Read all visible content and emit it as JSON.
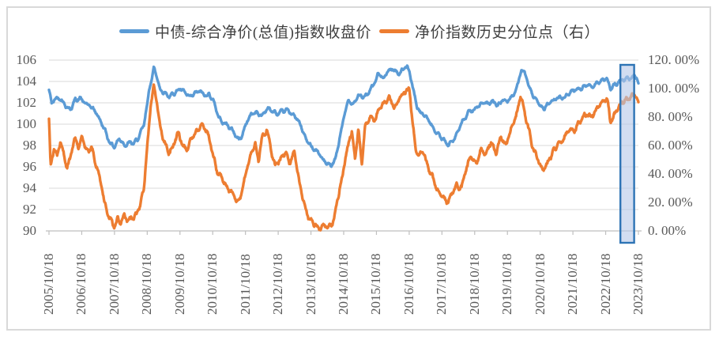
{
  "legend": {
    "items": [
      {
        "label": "中债-综合净价(总值)指数收盘价",
        "color": "#5B9BD5"
      },
      {
        "label": "净价指数历史分位点（右）",
        "color": "#ED7D31"
      }
    ]
  },
  "chart_data": {
    "type": "line",
    "title": "",
    "grid": "horizontal",
    "legend_position": "top",
    "left_axis": {
      "min": 90,
      "max": 106,
      "tick_step": 2,
      "tick_labels": [
        "106",
        "104",
        "102",
        "100",
        "98",
        "96",
        "94",
        "92",
        "90"
      ]
    },
    "right_axis": {
      "min": 0,
      "max": 120,
      "tick_step": 20,
      "unit": "%",
      "tick_labels": [
        "120. 00%",
        "100. 00%",
        "80. 00%",
        "60. 00%",
        "40. 00%",
        "20. 00%",
        "0. 00%"
      ]
    },
    "x_axis": {
      "start": 2005.8,
      "end": 2023.8,
      "tick_labels": [
        "2005/10/18",
        "2006/10/18",
        "2007/10/18",
        "2008/10/18",
        "2009/10/18",
        "2010/10/18",
        "2011/10/18",
        "2012/10/18",
        "2013/10/18",
        "2014/10/18",
        "2015/10/18",
        "2016/10/18",
        "2017/10/18",
        "2018/10/18",
        "2019/10/18",
        "2020/10/18",
        "2021/10/18",
        "2022/10/18",
        "2023/10/18"
      ]
    },
    "highlight_band": {
      "from_x": 2023.25,
      "to_x": 2023.67,
      "fill": "#B4C7E7",
      "fill_opacity": 0.6,
      "border": "#2E74B5"
    },
    "series": [
      {
        "name": "中债-综合净价(总值)指数收盘价",
        "axis": "left",
        "color": "#5B9BD5",
        "noise_amp": 0.22,
        "keypoints": [
          [
            2005.8,
            103.2
          ],
          [
            2005.88,
            101.9
          ],
          [
            2006.0,
            102.3
          ],
          [
            2006.15,
            102.5
          ],
          [
            2006.3,
            101.9
          ],
          [
            2006.45,
            101.4
          ],
          [
            2006.6,
            102.2
          ],
          [
            2006.75,
            102.4
          ],
          [
            2006.9,
            102.0
          ],
          [
            2007.05,
            101.7
          ],
          [
            2007.2,
            101.2
          ],
          [
            2007.35,
            100.4
          ],
          [
            2007.5,
            99.5
          ],
          [
            2007.65,
            98.4
          ],
          [
            2007.8,
            97.9
          ],
          [
            2007.95,
            98.6
          ],
          [
            2008.1,
            98.1
          ],
          [
            2008.25,
            98.3
          ],
          [
            2008.4,
            98.2
          ],
          [
            2008.55,
            98.7
          ],
          [
            2008.7,
            99.8
          ],
          [
            2008.85,
            103.0
          ],
          [
            2009.0,
            105.4
          ],
          [
            2009.08,
            104.6
          ],
          [
            2009.2,
            103.2
          ],
          [
            2009.35,
            102.9
          ],
          [
            2009.5,
            102.6
          ],
          [
            2009.65,
            103.1
          ],
          [
            2009.8,
            103.3
          ],
          [
            2009.95,
            102.8
          ],
          [
            2010.1,
            102.4
          ],
          [
            2010.25,
            102.9
          ],
          [
            2010.4,
            103.1
          ],
          [
            2010.55,
            102.6
          ],
          [
            2010.7,
            102.8
          ],
          [
            2010.85,
            102.0
          ],
          [
            2011.0,
            100.6
          ],
          [
            2011.15,
            100.1
          ],
          [
            2011.3,
            99.7
          ],
          [
            2011.45,
            99.2
          ],
          [
            2011.6,
            98.6
          ],
          [
            2011.7,
            99.0
          ],
          [
            2011.85,
            100.3
          ],
          [
            2012.0,
            100.9
          ],
          [
            2012.15,
            101.2
          ],
          [
            2012.3,
            100.8
          ],
          [
            2012.45,
            101.5
          ],
          [
            2012.6,
            101.2
          ],
          [
            2012.75,
            100.9
          ],
          [
            2012.9,
            101.1
          ],
          [
            2013.05,
            101.3
          ],
          [
            2013.2,
            101.0
          ],
          [
            2013.35,
            100.5
          ],
          [
            2013.5,
            99.8
          ],
          [
            2013.65,
            98.6
          ],
          [
            2013.8,
            97.9
          ],
          [
            2013.95,
            97.6
          ],
          [
            2014.1,
            97.0
          ],
          [
            2014.25,
            96.4
          ],
          [
            2014.4,
            96.0
          ],
          [
            2014.55,
            96.6
          ],
          [
            2014.65,
            98.2
          ],
          [
            2014.8,
            100.6
          ],
          [
            2014.95,
            102.3
          ],
          [
            2015.1,
            102.0
          ],
          [
            2015.25,
            102.7
          ],
          [
            2015.4,
            102.4
          ],
          [
            2015.55,
            103.0
          ],
          [
            2015.7,
            103.6
          ],
          [
            2015.85,
            104.6
          ],
          [
            2016.0,
            104.3
          ],
          [
            2016.15,
            105.0
          ],
          [
            2016.3,
            105.3
          ],
          [
            2016.45,
            104.7
          ],
          [
            2016.6,
            105.1
          ],
          [
            2016.75,
            105.3
          ],
          [
            2016.85,
            104.4
          ],
          [
            2016.95,
            102.9
          ],
          [
            2017.05,
            101.6
          ],
          [
            2017.15,
            101.0
          ],
          [
            2017.3,
            100.7
          ],
          [
            2017.45,
            100.1
          ],
          [
            2017.6,
            99.4
          ],
          [
            2017.75,
            98.8
          ],
          [
            2017.9,
            98.2
          ],
          [
            2018.0,
            97.9
          ],
          [
            2018.15,
            98.7
          ],
          [
            2018.3,
            99.5
          ],
          [
            2018.45,
            100.3
          ],
          [
            2018.6,
            100.9
          ],
          [
            2018.75,
            101.4
          ],
          [
            2018.9,
            101.7
          ],
          [
            2019.05,
            102.0
          ],
          [
            2019.2,
            101.7
          ],
          [
            2019.35,
            102.1
          ],
          [
            2019.5,
            101.8
          ],
          [
            2019.65,
            102.3
          ],
          [
            2019.8,
            102.1
          ],
          [
            2019.95,
            102.6
          ],
          [
            2020.1,
            103.5
          ],
          [
            2020.22,
            105.2
          ],
          [
            2020.32,
            104.9
          ],
          [
            2020.45,
            103.5
          ],
          [
            2020.6,
            102.4
          ],
          [
            2020.75,
            101.8
          ],
          [
            2020.9,
            101.6
          ],
          [
            2021.05,
            101.9
          ],
          [
            2021.2,
            102.1
          ],
          [
            2021.35,
            102.4
          ],
          [
            2021.5,
            102.6
          ],
          [
            2021.65,
            102.9
          ],
          [
            2021.8,
            103.1
          ],
          [
            2021.95,
            103.3
          ],
          [
            2022.1,
            103.5
          ],
          [
            2022.25,
            103.7
          ],
          [
            2022.4,
            103.6
          ],
          [
            2022.55,
            103.9
          ],
          [
            2022.7,
            104.1
          ],
          [
            2022.85,
            104.2
          ],
          [
            2022.95,
            103.3
          ],
          [
            2023.1,
            103.7
          ],
          [
            2023.25,
            104.0
          ],
          [
            2023.4,
            104.2
          ],
          [
            2023.55,
            104.5
          ],
          [
            2023.68,
            104.7
          ],
          [
            2023.75,
            104.3
          ],
          [
            2023.8,
            103.9
          ]
        ]
      },
      {
        "name": "净价指数历史分位点（右）",
        "axis": "right",
        "color": "#ED7D31",
        "noise_amp": 2.4,
        "keypoints": [
          [
            2005.8,
            79
          ],
          [
            2005.85,
            45
          ],
          [
            2005.95,
            58
          ],
          [
            2006.05,
            52
          ],
          [
            2006.15,
            62
          ],
          [
            2006.25,
            55
          ],
          [
            2006.35,
            45
          ],
          [
            2006.45,
            52
          ],
          [
            2006.6,
            64
          ],
          [
            2006.7,
            58
          ],
          [
            2006.8,
            66
          ],
          [
            2006.9,
            60
          ],
          [
            2007.0,
            55
          ],
          [
            2007.1,
            58
          ],
          [
            2007.2,
            48
          ],
          [
            2007.3,
            42
          ],
          [
            2007.4,
            30
          ],
          [
            2007.5,
            20
          ],
          [
            2007.6,
            12
          ],
          [
            2007.7,
            6
          ],
          [
            2007.8,
            3
          ],
          [
            2007.9,
            8
          ],
          [
            2008.0,
            5
          ],
          [
            2008.1,
            10
          ],
          [
            2008.2,
            7
          ],
          [
            2008.3,
            12
          ],
          [
            2008.4,
            9
          ],
          [
            2008.5,
            13
          ],
          [
            2008.6,
            18
          ],
          [
            2008.7,
            30
          ],
          [
            2008.8,
            60
          ],
          [
            2008.9,
            88
          ],
          [
            2009.0,
            102
          ],
          [
            2009.1,
            88
          ],
          [
            2009.2,
            72
          ],
          [
            2009.3,
            62
          ],
          [
            2009.45,
            55
          ],
          [
            2009.6,
            62
          ],
          [
            2009.75,
            68
          ],
          [
            2009.9,
            60
          ],
          [
            2010.05,
            58
          ],
          [
            2010.2,
            66
          ],
          [
            2010.35,
            72
          ],
          [
            2010.5,
            75
          ],
          [
            2010.65,
            68
          ],
          [
            2010.8,
            55
          ],
          [
            2010.95,
            42
          ],
          [
            2011.1,
            36
          ],
          [
            2011.25,
            30
          ],
          [
            2011.4,
            26
          ],
          [
            2011.55,
            21
          ],
          [
            2011.65,
            24
          ],
          [
            2011.8,
            38
          ],
          [
            2011.95,
            52
          ],
          [
            2012.1,
            62
          ],
          [
            2012.2,
            50
          ],
          [
            2012.3,
            66
          ],
          [
            2012.45,
            71
          ],
          [
            2012.6,
            55
          ],
          [
            2012.7,
            45
          ],
          [
            2012.85,
            50
          ],
          [
            2013.0,
            55
          ],
          [
            2013.15,
            48
          ],
          [
            2013.3,
            54
          ],
          [
            2013.45,
            34
          ],
          [
            2013.6,
            18
          ],
          [
            2013.75,
            8
          ],
          [
            2013.9,
            3
          ],
          [
            2014.05,
            2
          ],
          [
            2014.2,
            4
          ],
          [
            2014.35,
            2
          ],
          [
            2014.5,
            8
          ],
          [
            2014.65,
            25
          ],
          [
            2014.8,
            45
          ],
          [
            2014.95,
            62
          ],
          [
            2015.05,
            70
          ],
          [
            2015.15,
            52
          ],
          [
            2015.25,
            72
          ],
          [
            2015.35,
            46
          ],
          [
            2015.45,
            74
          ],
          [
            2015.6,
            82
          ],
          [
            2015.75,
            78
          ],
          [
            2015.9,
            86
          ],
          [
            2016.05,
            90
          ],
          [
            2016.2,
            94
          ],
          [
            2016.35,
            88
          ],
          [
            2016.5,
            93
          ],
          [
            2016.65,
            96
          ],
          [
            2016.8,
            100
          ],
          [
            2016.9,
            78
          ],
          [
            2017.0,
            58
          ],
          [
            2017.1,
            52
          ],
          [
            2017.2,
            55
          ],
          [
            2017.35,
            45
          ],
          [
            2017.5,
            38
          ],
          [
            2017.65,
            30
          ],
          [
            2017.8,
            24
          ],
          [
            2017.95,
            18
          ],
          [
            2018.1,
            26
          ],
          [
            2018.25,
            34
          ],
          [
            2018.4,
            30
          ],
          [
            2018.55,
            44
          ],
          [
            2018.7,
            52
          ],
          [
            2018.85,
            48
          ],
          [
            2019.0,
            58
          ],
          [
            2019.15,
            52
          ],
          [
            2019.3,
            62
          ],
          [
            2019.45,
            56
          ],
          [
            2019.6,
            66
          ],
          [
            2019.75,
            60
          ],
          [
            2019.9,
            70
          ],
          [
            2020.05,
            78
          ],
          [
            2020.2,
            95
          ],
          [
            2020.3,
            88
          ],
          [
            2020.45,
            70
          ],
          [
            2020.6,
            57
          ],
          [
            2020.75,
            48
          ],
          [
            2020.9,
            44
          ],
          [
            2021.05,
            49
          ],
          [
            2021.2,
            55
          ],
          [
            2021.35,
            61
          ],
          [
            2021.5,
            66
          ],
          [
            2021.65,
            71
          ],
          [
            2021.8,
            68
          ],
          [
            2021.95,
            74
          ],
          [
            2022.1,
            79
          ],
          [
            2022.25,
            84
          ],
          [
            2022.4,
            81
          ],
          [
            2022.55,
            87
          ],
          [
            2022.7,
            90
          ],
          [
            2022.85,
            93
          ],
          [
            2022.95,
            77
          ],
          [
            2023.1,
            83
          ],
          [
            2023.25,
            88
          ],
          [
            2023.4,
            92
          ],
          [
            2023.55,
            95
          ],
          [
            2023.7,
            97
          ],
          [
            2023.8,
            88
          ]
        ]
      }
    ]
  }
}
